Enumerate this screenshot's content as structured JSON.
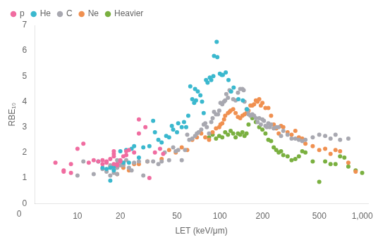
{
  "chart_data": {
    "type": "scatter",
    "xlabel": "LET (keV/μm)",
    "ylabel": "RBE₁₀",
    "log": "x",
    "xlim": [
      5,
      1100
    ],
    "ylim": [
      0,
      7
    ],
    "xticks": [
      10,
      20,
      50,
      100,
      200,
      500,
      {
        "value": 1000,
        "label": "1,000"
      }
    ],
    "yticks": [
      0,
      1,
      2,
      3,
      4,
      5,
      6,
      7
    ],
    "grid": false,
    "legend": "upper left",
    "annotations": [
      "0"
    ],
    "series": [
      {
        "name": "p",
        "color": "#f06ca0",
        "values": [
          [
            7,
            1.6
          ],
          [
            8,
            1.3
          ],
          [
            8,
            1.25
          ],
          [
            9,
            1.55
          ],
          [
            9,
            1.2
          ],
          [
            10,
            2.15
          ],
          [
            11,
            2.35
          ],
          [
            12,
            1.6
          ],
          [
            13,
            1.7
          ],
          [
            14,
            1.65
          ],
          [
            15,
            1.55
          ],
          [
            15,
            1.7
          ],
          [
            16,
            1.65
          ],
          [
            16,
            1.6
          ],
          [
            17,
            1.75
          ],
          [
            18,
            1.95
          ],
          [
            18,
            2.05
          ],
          [
            18,
            1.85
          ],
          [
            18,
            1.55
          ],
          [
            19,
            1.5
          ],
          [
            19,
            1.55
          ],
          [
            20,
            1.65
          ],
          [
            20,
            1.7
          ],
          [
            21,
            1.85
          ],
          [
            22,
            2.05
          ],
          [
            22,
            1.9
          ],
          [
            23,
            2.1
          ],
          [
            25,
            2.0
          ],
          [
            27,
            3.3
          ],
          [
            27,
            2.75
          ],
          [
            30,
            3.0
          ],
          [
            32,
            1.0
          ],
          [
            35,
            2.0
          ],
          [
            38,
            2.15
          ],
          [
            40,
            1.95
          ]
        ]
      },
      {
        "name": "He",
        "color": "#3ab8ce",
        "values": [
          [
            14,
            1.65
          ],
          [
            15,
            1.4
          ],
          [
            16,
            1.35
          ],
          [
            17,
            0.9
          ],
          [
            17,
            1.4
          ],
          [
            18,
            1.3
          ],
          [
            18,
            1.45
          ],
          [
            19,
            1.55
          ],
          [
            20,
            2.05
          ],
          [
            21,
            1.6
          ],
          [
            22,
            2.1
          ],
          [
            23,
            1.6
          ],
          [
            24,
            2.15
          ],
          [
            25,
            2.25
          ],
          [
            27,
            1.8
          ],
          [
            29,
            2.2
          ],
          [
            32,
            2.25
          ],
          [
            34,
            3.25
          ],
          [
            35,
            2.8
          ],
          [
            37,
            2.5
          ],
          [
            39,
            2.4
          ],
          [
            42,
            2.65
          ],
          [
            44,
            2.6
          ],
          [
            46,
            3.05
          ],
          [
            47,
            2.9
          ],
          [
            50,
            2.8
          ],
          [
            51,
            3.15
          ],
          [
            54,
            3.0
          ],
          [
            56,
            3.2
          ],
          [
            58,
            3.0
          ],
          [
            60,
            3.45
          ],
          [
            62,
            4.6
          ],
          [
            64,
            4.1
          ],
          [
            66,
            3.95
          ],
          [
            67,
            4.5
          ],
          [
            68,
            4.05
          ],
          [
            70,
            4.4
          ],
          [
            73,
            4.25
          ],
          [
            75,
            4.0
          ],
          [
            77,
            3.55
          ],
          [
            80,
            4.85
          ],
          [
            82,
            4.75
          ],
          [
            85,
            4.95
          ],
          [
            87,
            4.85
          ],
          [
            90,
            5.0
          ],
          [
            91,
            5.8
          ],
          [
            95,
            6.35
          ],
          [
            96,
            5.75
          ],
          [
            100,
            5.1
          ],
          [
            103,
            5.05
          ],
          [
            105,
            5.05
          ],
          [
            110,
            5.15
          ],
          [
            115,
            4.85
          ],
          [
            120,
            4.4
          ],
          [
            125,
            4.55
          ],
          [
            135,
            4.1
          ],
          [
            145,
            4.05
          ],
          [
            155,
            3.7
          ]
        ]
      },
      {
        "name": "C",
        "color": "#a8a8b0",
        "values": [
          [
            10,
            1.1
          ],
          [
            11,
            1.65
          ],
          [
            13,
            1.15
          ],
          [
            15,
            1.35
          ],
          [
            16,
            1.25
          ],
          [
            17,
            1.1
          ],
          [
            17,
            1.5
          ],
          [
            18,
            1.2
          ],
          [
            18,
            1.35
          ],
          [
            19,
            1.15
          ],
          [
            19,
            1.4
          ],
          [
            19,
            1.7
          ],
          [
            20,
            1.5
          ],
          [
            21,
            1.55
          ],
          [
            21,
            1.5
          ],
          [
            22,
            1.7
          ],
          [
            23,
            1.4
          ],
          [
            24,
            1.3
          ],
          [
            25,
            1.6
          ],
          [
            27,
            1.65
          ],
          [
            29,
            1.1
          ],
          [
            31,
            1.65
          ],
          [
            34,
            1.65
          ],
          [
            37,
            1.55
          ],
          [
            39,
            1.65
          ],
          [
            41,
            2.0
          ],
          [
            44,
            1.7
          ],
          [
            47,
            2.2
          ],
          [
            49,
            2.05
          ],
          [
            51,
            2.1
          ],
          [
            54,
            1.7
          ],
          [
            57,
            2.1
          ],
          [
            59,
            2.7
          ],
          [
            61,
            2.5
          ],
          [
            64,
            2.55
          ],
          [
            67,
            2.65
          ],
          [
            69,
            2.75
          ],
          [
            71,
            2.8
          ],
          [
            74,
            2.9
          ],
          [
            77,
            3.1
          ],
          [
            79,
            3.15
          ],
          [
            81,
            3.0
          ],
          [
            84,
            2.75
          ],
          [
            87,
            3.2
          ],
          [
            89,
            3.35
          ],
          [
            91,
            3.6
          ],
          [
            94,
            3.5
          ],
          [
            97,
            3.5
          ],
          [
            99,
            3.65
          ],
          [
            101,
            3.95
          ],
          [
            104,
            3.9
          ],
          [
            107,
            4.0
          ],
          [
            109,
            4.05
          ],
          [
            111,
            4.3
          ],
          [
            114,
            4.15
          ],
          [
            117,
            4.45
          ],
          [
            119,
            4.4
          ],
          [
            124,
            4.1
          ],
          [
            129,
            4.05
          ],
          [
            134,
            4.35
          ],
          [
            139,
            4.5
          ],
          [
            144,
            4.5
          ],
          [
            147,
            4.45
          ],
          [
            149,
            4.0
          ],
          [
            154,
            3.7
          ],
          [
            157,
            3.65
          ],
          [
            159,
            3.5
          ],
          [
            164,
            3.45
          ],
          [
            169,
            3.5
          ],
          [
            174,
            3.45
          ],
          [
            179,
            3.35
          ],
          [
            184,
            3.2
          ],
          [
            189,
            3.35
          ],
          [
            194,
            3.1
          ],
          [
            199,
            3.3
          ],
          [
            204,
            3.25
          ],
          [
            209,
            3.05
          ],
          [
            214,
            3.0
          ],
          [
            219,
            3.15
          ],
          [
            224,
            3.0
          ],
          [
            229,
            3.1
          ],
          [
            239,
            2.95
          ],
          [
            249,
            3.0
          ],
          [
            259,
            3.0
          ],
          [
            269,
            2.65
          ],
          [
            279,
            2.85
          ],
          [
            299,
            2.7
          ],
          [
            319,
            2.55
          ],
          [
            339,
            2.55
          ],
          [
            359,
            2.5
          ],
          [
            379,
            2.45
          ],
          [
            399,
            2.5
          ],
          [
            449,
            2.6
          ],
          [
            499,
            2.7
          ],
          [
            549,
            2.65
          ],
          [
            599,
            2.55
          ],
          [
            649,
            2.7
          ],
          [
            699,
            2.5
          ],
          [
            799,
            2.55
          ]
        ]
      },
      {
        "name": "Ne",
        "color": "#f09050",
        "values": [
          [
            17,
            1.45
          ],
          [
            19,
            1.15
          ],
          [
            21,
            1.4
          ],
          [
            23,
            1.3
          ],
          [
            25,
            1.55
          ],
          [
            27,
            1.55
          ],
          [
            31,
            1.65
          ],
          [
            39,
            1.75
          ],
          [
            44,
            2.1
          ],
          [
            49,
            2.0
          ],
          [
            54,
            2.2
          ],
          [
            59,
            2.1
          ],
          [
            64,
            2.5
          ],
          [
            69,
            2.6
          ],
          [
            74,
            2.75
          ],
          [
            79,
            2.6
          ],
          [
            84,
            2.5
          ],
          [
            89,
            2.8
          ],
          [
            94,
            2.95
          ],
          [
            99,
            3.0
          ],
          [
            101,
            3.1
          ],
          [
            104,
            3.15
          ],
          [
            107,
            3.3
          ],
          [
            109,
            3.45
          ],
          [
            114,
            3.55
          ],
          [
            117,
            3.6
          ],
          [
            119,
            3.65
          ],
          [
            124,
            3.7
          ],
          [
            129,
            3.55
          ],
          [
            134,
            3.4
          ],
          [
            139,
            3.35
          ],
          [
            144,
            3.45
          ],
          [
            149,
            3.5
          ],
          [
            154,
            3.55
          ],
          [
            157,
            3.6
          ],
          [
            159,
            3.65
          ],
          [
            164,
            3.85
          ],
          [
            169,
            3.85
          ],
          [
            174,
            3.9
          ],
          [
            179,
            4.05
          ],
          [
            184,
            4.0
          ],
          [
            189,
            4.1
          ],
          [
            194,
            3.85
          ],
          [
            199,
            3.95
          ],
          [
            209,
            3.75
          ],
          [
            219,
            3.75
          ],
          [
            229,
            3.45
          ],
          [
            239,
            3.1
          ],
          [
            249,
            2.95
          ],
          [
            259,
            2.75
          ],
          [
            269,
            3.05
          ],
          [
            279,
            3.0
          ],
          [
            299,
            2.8
          ],
          [
            319,
            2.7
          ],
          [
            339,
            2.85
          ],
          [
            359,
            2.6
          ],
          [
            379,
            2.55
          ],
          [
            399,
            2.35
          ],
          [
            449,
            2.25
          ],
          [
            499,
            2.1
          ],
          [
            549,
            2.15
          ],
          [
            599,
            1.95
          ],
          [
            649,
            2.1
          ],
          [
            699,
            2.05
          ],
          [
            799,
            1.6
          ],
          [
            899,
            1.25
          ]
        ]
      },
      {
        "name": "Heavier",
        "color": "#7ab040",
        "values": [
          [
            84,
            2.6
          ],
          [
            89,
            2.7
          ],
          [
            94,
            2.55
          ],
          [
            99,
            2.65
          ],
          [
            104,
            2.6
          ],
          [
            109,
            2.8
          ],
          [
            114,
            2.7
          ],
          [
            119,
            2.85
          ],
          [
            124,
            2.75
          ],
          [
            129,
            2.6
          ],
          [
            134,
            2.75
          ],
          [
            139,
            2.7
          ],
          [
            144,
            2.8
          ],
          [
            149,
            2.65
          ],
          [
            154,
            2.75
          ],
          [
            159,
            3.1
          ],
          [
            169,
            3.35
          ],
          [
            179,
            3.2
          ],
          [
            189,
            3.0
          ],
          [
            199,
            2.9
          ],
          [
            209,
            2.75
          ],
          [
            219,
            2.5
          ],
          [
            229,
            2.45
          ],
          [
            239,
            2.2
          ],
          [
            249,
            2.1
          ],
          [
            259,
            2.0
          ],
          [
            269,
            2.05
          ],
          [
            279,
            1.9
          ],
          [
            299,
            1.85
          ],
          [
            319,
            1.7
          ],
          [
            339,
            1.75
          ],
          [
            359,
            1.85
          ],
          [
            379,
            2.05
          ],
          [
            399,
            2.0
          ],
          [
            449,
            1.65
          ],
          [
            499,
            0.85
          ],
          [
            549,
            1.65
          ],
          [
            599,
            1.55
          ],
          [
            649,
            1.55
          ],
          [
            699,
            1.85
          ],
          [
            749,
            1.8
          ],
          [
            799,
            1.45
          ],
          [
            899,
            1.3
          ],
          [
            999,
            1.2
          ]
        ]
      }
    ]
  }
}
